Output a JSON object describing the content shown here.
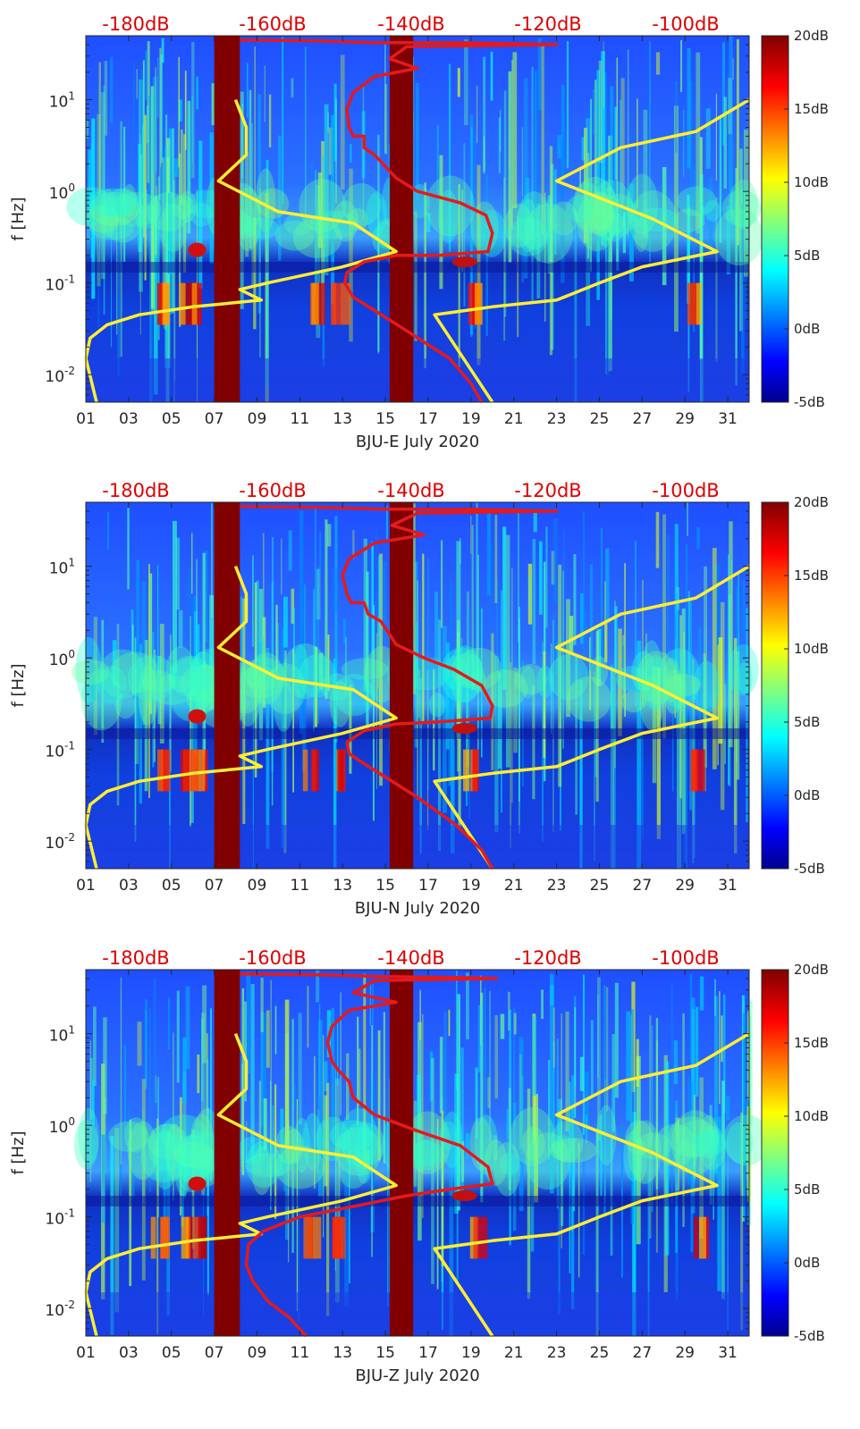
{
  "colors": {
    "noise_model_line": "#ffee33",
    "psd_line": "#e41a1c",
    "gap_fill": "#800000",
    "top_label": "#e00000"
  },
  "colormap": "jet",
  "chart_data": [
    {
      "type": "heatmap",
      "xlabel": "BJU-E July 2020",
      "ylabel": "f [Hz]",
      "x_ticks": [
        "01",
        "03",
        "05",
        "07",
        "09",
        "11",
        "13",
        "15",
        "17",
        "19",
        "21",
        "23",
        "25",
        "27",
        "29",
        "31"
      ],
      "y_ticks": [
        "10^-2",
        "10^-1",
        "10^0",
        "10^1"
      ],
      "ylim": [
        0.005,
        50
      ],
      "yscale": "log",
      "top_axis_ticks": [
        "-180dB",
        "-160dB",
        "-140dB",
        "-120dB",
        "-100dB"
      ],
      "colorbar_ticks": [
        "20dB",
        "15dB",
        "10dB",
        "5dB",
        "0dB",
        "-5dB"
      ],
      "data_gaps_days": [
        [
          7.0,
          8.2
        ],
        [
          15.2,
          16.3
        ]
      ],
      "series": [
        {
          "color": "yellow",
          "points": [
            [
              8.0,
              10
            ],
            [
              8.5,
              5
            ],
            [
              8.5,
              2.5
            ],
            [
              7.2,
              1.3
            ],
            [
              10,
              0.6
            ],
            [
              13.5,
              0.45
            ],
            [
              15.5,
              0.22
            ],
            [
              13,
              0.15
            ],
            [
              9.5,
              0.1
            ],
            [
              8.2,
              0.085
            ],
            [
              9.2,
              0.065
            ],
            [
              6,
              0.055
            ],
            [
              3.5,
              0.045
            ],
            [
              2,
              0.035
            ],
            [
              1.2,
              0.025
            ],
            [
              1.0,
              0.015
            ],
            [
              1.5,
              0.005
            ]
          ]
        },
        {
          "color": "yellow",
          "points": [
            [
              32,
              10
            ],
            [
              29.5,
              4.5
            ],
            [
              26,
              3
            ],
            [
              23,
              1.3
            ],
            [
              27.5,
              0.5
            ],
            [
              30.5,
              0.22
            ],
            [
              27,
              0.15
            ],
            [
              25,
              0.1
            ],
            [
              23,
              0.065
            ],
            [
              20,
              0.055
            ],
            [
              17.3,
              0.045
            ],
            [
              20,
              0.005
            ]
          ]
        },
        {
          "color": "red",
          "points": [
            [
              8.2,
              45
            ],
            [
              12,
              44
            ],
            [
              14.5,
              42
            ],
            [
              18.5,
              42
            ],
            [
              23,
              40
            ],
            [
              16,
              38
            ],
            [
              15.2,
              28
            ],
            [
              16.5,
              22
            ],
            [
              14.5,
              18
            ],
            [
              13.5,
              12
            ],
            [
              13.2,
              8
            ],
            [
              13.3,
              5
            ],
            [
              13.5,
              4
            ],
            [
              14,
              4
            ],
            [
              14,
              3
            ],
            [
              14.5,
              2.5
            ],
            [
              15.5,
              1.4
            ],
            [
              16.5,
              1.0
            ],
            [
              18.5,
              0.75
            ],
            [
              19.7,
              0.55
            ],
            [
              20,
              0.35
            ],
            [
              19.8,
              0.22
            ],
            [
              17.5,
              0.2
            ],
            [
              15.5,
              0.2
            ],
            [
              14,
              0.17
            ],
            [
              13.2,
              0.13
            ],
            [
              13.1,
              0.1
            ],
            [
              13.5,
              0.07
            ],
            [
              14.5,
              0.05
            ],
            [
              16,
              0.03
            ],
            [
              18,
              0.015
            ],
            [
              19,
              0.008
            ],
            [
              19.5,
              0.005
            ]
          ]
        }
      ]
    },
    {
      "type": "heatmap",
      "xlabel": "BJU-N July 2020",
      "ylabel": "f [Hz]",
      "x_ticks": [
        "01",
        "03",
        "05",
        "07",
        "09",
        "11",
        "13",
        "15",
        "17",
        "19",
        "21",
        "23",
        "25",
        "27",
        "29",
        "31"
      ],
      "y_ticks": [
        "10^-2",
        "10^-1",
        "10^0",
        "10^1"
      ],
      "ylim": [
        0.005,
        50
      ],
      "yscale": "log",
      "top_axis_ticks": [
        "-180dB",
        "-160dB",
        "-140dB",
        "-120dB",
        "-100dB"
      ],
      "colorbar_ticks": [
        "20dB",
        "15dB",
        "10dB",
        "5dB",
        "0dB",
        "-5dB"
      ],
      "data_gaps_days": [
        [
          7.0,
          8.2
        ],
        [
          15.2,
          16.3
        ]
      ],
      "series": [
        {
          "color": "yellow",
          "points": [
            [
              8.0,
              10
            ],
            [
              8.5,
              5
            ],
            [
              8.5,
              2.5
            ],
            [
              7.2,
              1.3
            ],
            [
              10,
              0.6
            ],
            [
              13.5,
              0.45
            ],
            [
              15.5,
              0.22
            ],
            [
              13,
              0.15
            ],
            [
              9.5,
              0.1
            ],
            [
              8.2,
              0.085
            ],
            [
              9.2,
              0.065
            ],
            [
              6,
              0.055
            ],
            [
              3.5,
              0.045
            ],
            [
              2,
              0.035
            ],
            [
              1.2,
              0.025
            ],
            [
              1.0,
              0.015
            ],
            [
              1.5,
              0.005
            ]
          ]
        },
        {
          "color": "yellow",
          "points": [
            [
              32,
              10
            ],
            [
              29.5,
              4.5
            ],
            [
              26,
              3
            ],
            [
              23,
              1.3
            ],
            [
              27.5,
              0.5
            ],
            [
              30.5,
              0.22
            ],
            [
              27,
              0.15
            ],
            [
              25,
              0.1
            ],
            [
              23,
              0.065
            ],
            [
              20,
              0.055
            ],
            [
              17.3,
              0.045
            ],
            [
              20,
              0.005
            ]
          ]
        },
        {
          "color": "red",
          "points": [
            [
              8.2,
              45
            ],
            [
              12,
              44
            ],
            [
              15,
              42
            ],
            [
              19,
              42
            ],
            [
              23,
              40
            ],
            [
              16.5,
              38
            ],
            [
              15.3,
              28
            ],
            [
              16.8,
              22
            ],
            [
              14.5,
              18
            ],
            [
              13.3,
              12
            ],
            [
              13,
              8
            ],
            [
              13.2,
              5
            ],
            [
              13.4,
              4
            ],
            [
              14,
              4
            ],
            [
              14.2,
              3
            ],
            [
              14.8,
              2.5
            ],
            [
              15.5,
              1.4
            ],
            [
              16.8,
              1.0
            ],
            [
              18.2,
              0.75
            ],
            [
              19.5,
              0.5
            ],
            [
              20,
              0.3
            ],
            [
              19.9,
              0.22
            ],
            [
              17.5,
              0.2
            ],
            [
              15.5,
              0.19
            ],
            [
              14,
              0.16
            ],
            [
              13.2,
              0.12
            ],
            [
              13.3,
              0.09
            ],
            [
              14,
              0.07
            ],
            [
              15,
              0.05
            ],
            [
              16.5,
              0.03
            ],
            [
              18.3,
              0.015
            ],
            [
              19.5,
              0.008
            ],
            [
              20,
              0.005
            ]
          ]
        }
      ]
    },
    {
      "type": "heatmap",
      "xlabel": "BJU-Z July 2020",
      "ylabel": "f [Hz]",
      "x_ticks": [
        "01",
        "03",
        "05",
        "07",
        "09",
        "11",
        "13",
        "15",
        "17",
        "19",
        "21",
        "23",
        "25",
        "27",
        "29",
        "31"
      ],
      "y_ticks": [
        "10^-2",
        "10^-1",
        "10^0",
        "10^1"
      ],
      "ylim": [
        0.005,
        50
      ],
      "yscale": "log",
      "top_axis_ticks": [
        "-180dB",
        "-160dB",
        "-140dB",
        "-120dB",
        "-100dB"
      ],
      "colorbar_ticks": [
        "20dB",
        "15dB",
        "10dB",
        "5dB",
        "0dB",
        "-5dB"
      ],
      "data_gaps_days": [
        [
          7.0,
          8.2
        ],
        [
          15.2,
          16.3
        ]
      ],
      "series": [
        {
          "color": "yellow",
          "points": [
            [
              8.0,
              10
            ],
            [
              8.5,
              5
            ],
            [
              8.5,
              2.5
            ],
            [
              7.2,
              1.3
            ],
            [
              10,
              0.6
            ],
            [
              13.5,
              0.45
            ],
            [
              15.5,
              0.22
            ],
            [
              13,
              0.15
            ],
            [
              9.5,
              0.1
            ],
            [
              8.2,
              0.085
            ],
            [
              9.2,
              0.065
            ],
            [
              6,
              0.055
            ],
            [
              3.5,
              0.045
            ],
            [
              2,
              0.035
            ],
            [
              1.2,
              0.025
            ],
            [
              1.0,
              0.015
            ],
            [
              1.5,
              0.005
            ]
          ]
        },
        {
          "color": "yellow",
          "points": [
            [
              32,
              10
            ],
            [
              29.5,
              4.5
            ],
            [
              26,
              3
            ],
            [
              23,
              1.3
            ],
            [
              27.5,
              0.5
            ],
            [
              30.5,
              0.22
            ],
            [
              27,
              0.15
            ],
            [
              25,
              0.1
            ],
            [
              23,
              0.065
            ],
            [
              20,
              0.055
            ],
            [
              17.3,
              0.045
            ],
            [
              20,
              0.005
            ]
          ]
        },
        {
          "color": "red",
          "points": [
            [
              8.2,
              45
            ],
            [
              12,
              44
            ],
            [
              15,
              42
            ],
            [
              18.5,
              41
            ],
            [
              20.2,
              40
            ],
            [
              14.5,
              38
            ],
            [
              13.5,
              28
            ],
            [
              15.5,
              22
            ],
            [
              13.3,
              18
            ],
            [
              12.5,
              12
            ],
            [
              12.3,
              8
            ],
            [
              12.5,
              5
            ],
            [
              12.8,
              4
            ],
            [
              13.3,
              3
            ],
            [
              13.5,
              2
            ],
            [
              14.5,
              1.3
            ],
            [
              16.3,
              0.9
            ],
            [
              18.5,
              0.6
            ],
            [
              19.8,
              0.35
            ],
            [
              20,
              0.23
            ],
            [
              18,
              0.2
            ],
            [
              16,
              0.17
            ],
            [
              13.5,
              0.13
            ],
            [
              11,
              0.1
            ],
            [
              9.3,
              0.07
            ],
            [
              8.6,
              0.05
            ],
            [
              8.5,
              0.03
            ],
            [
              8.8,
              0.02
            ],
            [
              9.5,
              0.012
            ],
            [
              10.5,
              0.008
            ],
            [
              11.3,
              0.005
            ]
          ]
        }
      ]
    }
  ]
}
